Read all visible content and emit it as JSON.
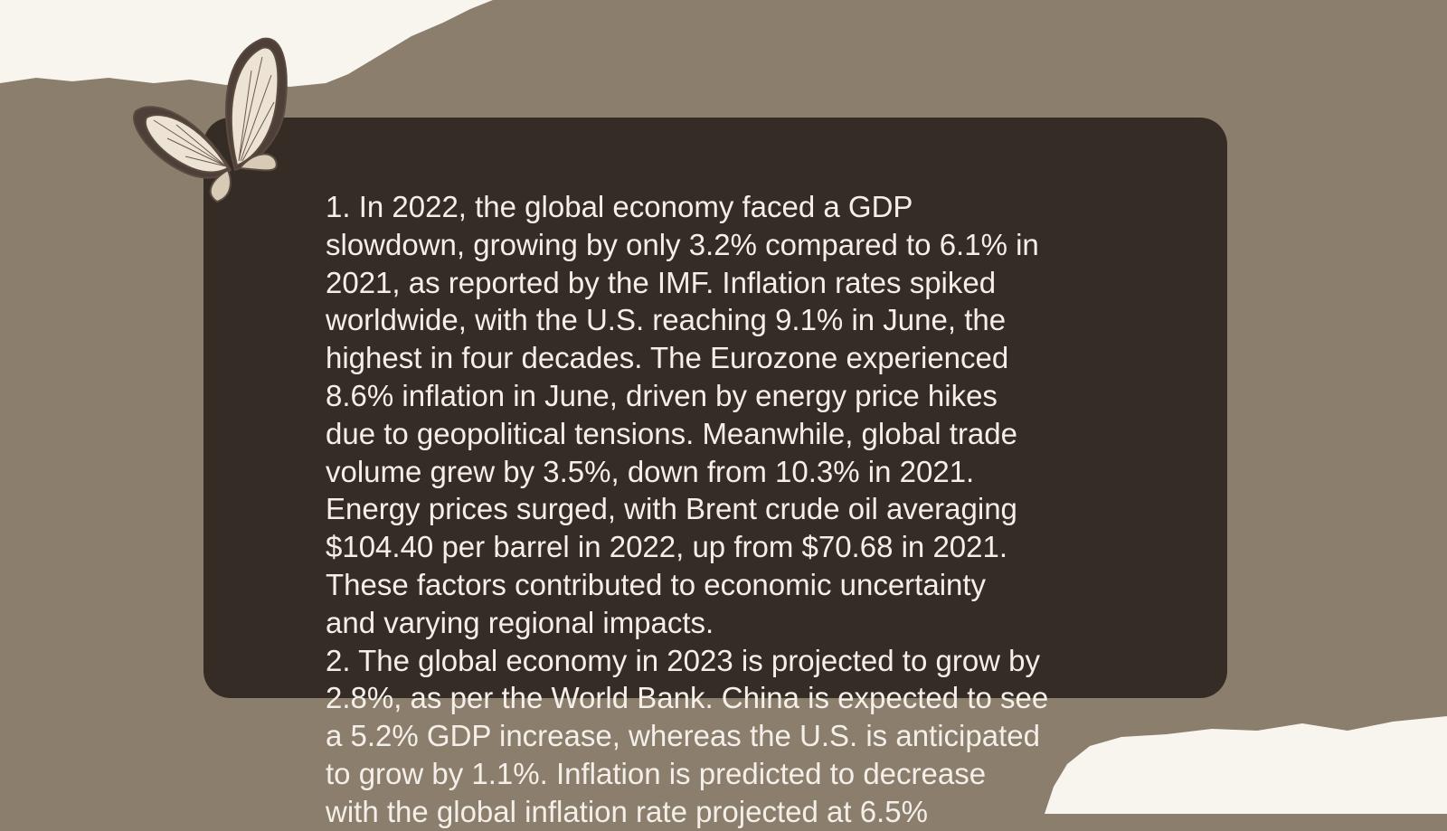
{
  "items": [
    {
      "lines": [
        "1. In 2022, the global economy faced a GDP",
        "slowdown, growing by only 3.2% compared to 6.1% in",
        "2021, as reported by the IMF. Inflation rates spiked",
        "worldwide, with the U.S. reaching 9.1% in June, the",
        "highest in four decades. The Eurozone experienced",
        "8.6% inflation in June, driven by energy price hikes",
        "due to geopolitical tensions. Meanwhile, global trade",
        "volume grew by 3.5%, down from 10.3% in 2021.",
        "Energy prices surged, with Brent crude oil averaging",
        "$104.40 per barrel in 2022, up from $70.68 in 2021.",
        "These factors contributed to economic uncertainty",
        "and varying regional impacts."
      ]
    },
    {
      "lines": [
        "2. The global economy in 2023 is projected to grow by",
        "2.8%, as per the World Bank. China is expected to see",
        "a 5.2% GDP increase, whereas the U.S. is anticipated",
        "to grow by 1.1%. Inflation is predicted to decrease",
        "with the global inflation rate projected at 6.5%"
      ]
    }
  ]
}
